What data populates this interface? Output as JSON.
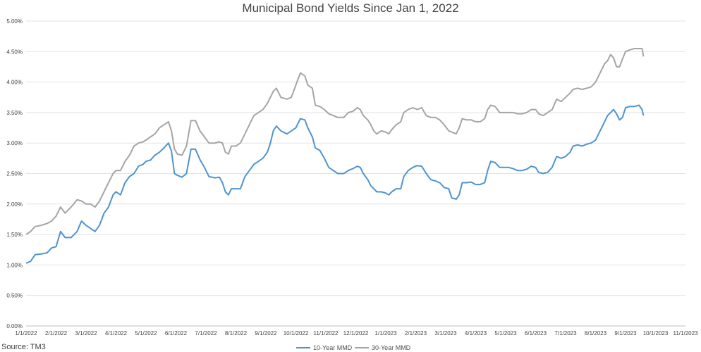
{
  "chart_data": {
    "type": "line",
    "title": "Municipal Bond Yields Since Jan 1, 2022",
    "source": "Source: TM3",
    "y_tick_labels": [
      "0.00%",
      "0.50%",
      "1.00%",
      "1.50%",
      "2.00%",
      "2.50%",
      "3.00%",
      "3.50%",
      "4.00%",
      "4.50%",
      "5.00%"
    ],
    "ylim": [
      0,
      5
    ],
    "x_tick_labels": [
      "1/1/2022",
      "2/1/2022",
      "3/1/2022",
      "4/1/2022",
      "5/1/2022",
      "6/1/2022",
      "7/1/2022",
      "8/1/2022",
      "9/1/2022",
      "10/1/2022",
      "11/1/2022",
      "12/1/2022",
      "1/1/2023",
      "2/1/2023",
      "3/1/2023",
      "4/1/2023",
      "5/1/2023",
      "6/1/2023",
      "7/1/2023",
      "8/1/2023",
      "9/1/2023",
      "10/1/2023",
      "11/1/2023"
    ],
    "grid": "horizontal",
    "legend_position": "bottom",
    "series": [
      {
        "name": "10-Year MMD",
        "color": "#4f93d0",
        "values": [
          [
            0.0,
            1.03
          ],
          [
            0.15,
            1.06
          ],
          [
            0.3,
            1.17
          ],
          [
            0.5,
            1.18
          ],
          [
            0.7,
            1.2
          ],
          [
            0.85,
            1.28
          ],
          [
            1.0,
            1.3
          ],
          [
            1.15,
            1.55
          ],
          [
            1.3,
            1.45
          ],
          [
            1.5,
            1.45
          ],
          [
            1.7,
            1.55
          ],
          [
            1.85,
            1.72
          ],
          [
            2.0,
            1.65
          ],
          [
            2.15,
            1.6
          ],
          [
            2.3,
            1.55
          ],
          [
            2.45,
            1.65
          ],
          [
            2.6,
            1.85
          ],
          [
            2.75,
            1.95
          ],
          [
            2.9,
            2.15
          ],
          [
            3.0,
            2.2
          ],
          [
            3.15,
            2.15
          ],
          [
            3.3,
            2.35
          ],
          [
            3.45,
            2.45
          ],
          [
            3.6,
            2.5
          ],
          [
            3.75,
            2.62
          ],
          [
            3.9,
            2.65
          ],
          [
            4.0,
            2.7
          ],
          [
            4.15,
            2.72
          ],
          [
            4.3,
            2.8
          ],
          [
            4.45,
            2.85
          ],
          [
            4.6,
            2.92
          ],
          [
            4.75,
            3.0
          ],
          [
            4.85,
            2.87
          ],
          [
            4.95,
            2.5
          ],
          [
            5.05,
            2.47
          ],
          [
            5.2,
            2.44
          ],
          [
            5.35,
            2.5
          ],
          [
            5.5,
            2.9
          ],
          [
            5.65,
            2.9
          ],
          [
            5.8,
            2.73
          ],
          [
            5.95,
            2.6
          ],
          [
            6.1,
            2.45
          ],
          [
            6.3,
            2.43
          ],
          [
            6.45,
            2.44
          ],
          [
            6.55,
            2.35
          ],
          [
            6.65,
            2.2
          ],
          [
            6.75,
            2.15
          ],
          [
            6.85,
            2.25
          ],
          [
            7.0,
            2.25
          ],
          [
            7.15,
            2.25
          ],
          [
            7.3,
            2.45
          ],
          [
            7.45,
            2.55
          ],
          [
            7.6,
            2.65
          ],
          [
            7.75,
            2.7
          ],
          [
            7.9,
            2.75
          ],
          [
            8.05,
            2.85
          ],
          [
            8.15,
            3.0
          ],
          [
            8.25,
            3.2
          ],
          [
            8.35,
            3.28
          ],
          [
            8.5,
            3.2
          ],
          [
            8.7,
            3.15
          ],
          [
            8.85,
            3.2
          ],
          [
            9.0,
            3.25
          ],
          [
            9.15,
            3.4
          ],
          [
            9.3,
            3.38
          ],
          [
            9.4,
            3.25
          ],
          [
            9.55,
            3.1
          ],
          [
            9.65,
            2.92
          ],
          [
            9.8,
            2.88
          ],
          [
            9.95,
            2.75
          ],
          [
            10.1,
            2.6
          ],
          [
            10.25,
            2.55
          ],
          [
            10.4,
            2.5
          ],
          [
            10.6,
            2.5
          ],
          [
            10.75,
            2.55
          ],
          [
            10.9,
            2.58
          ],
          [
            11.05,
            2.62
          ],
          [
            11.15,
            2.6
          ],
          [
            11.25,
            2.5
          ],
          [
            11.4,
            2.4
          ],
          [
            11.5,
            2.3
          ],
          [
            11.6,
            2.25
          ],
          [
            11.7,
            2.2
          ],
          [
            11.85,
            2.2
          ],
          [
            12.0,
            2.18
          ],
          [
            12.1,
            2.15
          ],
          [
            12.2,
            2.2
          ],
          [
            12.35,
            2.25
          ],
          [
            12.5,
            2.25
          ],
          [
            12.6,
            2.45
          ],
          [
            12.75,
            2.55
          ],
          [
            12.9,
            2.6
          ],
          [
            13.05,
            2.63
          ],
          [
            13.2,
            2.62
          ],
          [
            13.35,
            2.5
          ],
          [
            13.5,
            2.4
          ],
          [
            13.65,
            2.38
          ],
          [
            13.8,
            2.35
          ],
          [
            13.95,
            2.27
          ],
          [
            14.1,
            2.25
          ],
          [
            14.2,
            2.1
          ],
          [
            14.35,
            2.08
          ],
          [
            14.45,
            2.15
          ],
          [
            14.55,
            2.35
          ],
          [
            14.7,
            2.35
          ],
          [
            14.85,
            2.36
          ],
          [
            15.0,
            2.32
          ],
          [
            15.15,
            2.32
          ],
          [
            15.3,
            2.35
          ],
          [
            15.4,
            2.55
          ],
          [
            15.5,
            2.7
          ],
          [
            15.65,
            2.68
          ],
          [
            15.8,
            2.6
          ],
          [
            15.95,
            2.6
          ],
          [
            16.1,
            2.6
          ],
          [
            16.25,
            2.58
          ],
          [
            16.4,
            2.55
          ],
          [
            16.55,
            2.55
          ],
          [
            16.7,
            2.57
          ],
          [
            16.85,
            2.62
          ],
          [
            17.0,
            2.6
          ],
          [
            17.1,
            2.52
          ],
          [
            17.25,
            2.5
          ],
          [
            17.4,
            2.52
          ],
          [
            17.55,
            2.6
          ],
          [
            17.7,
            2.78
          ],
          [
            17.85,
            2.75
          ],
          [
            18.0,
            2.78
          ],
          [
            18.15,
            2.85
          ],
          [
            18.25,
            2.95
          ],
          [
            18.4,
            2.97
          ],
          [
            18.55,
            2.95
          ],
          [
            18.7,
            2.98
          ],
          [
            18.85,
            3.0
          ],
          [
            19.0,
            3.05
          ],
          [
            19.15,
            3.2
          ],
          [
            19.3,
            3.35
          ],
          [
            19.4,
            3.45
          ],
          [
            19.5,
            3.5
          ],
          [
            19.6,
            3.55
          ],
          [
            19.7,
            3.48
          ],
          [
            19.8,
            3.38
          ],
          [
            19.9,
            3.42
          ],
          [
            20.0,
            3.58
          ],
          [
            20.15,
            3.6
          ],
          [
            20.3,
            3.6
          ],
          [
            20.45,
            3.62
          ],
          [
            20.55,
            3.55
          ],
          [
            20.6,
            3.45
          ]
        ]
      },
      {
        "name": "30-Year MMD",
        "color": "#a5a5a5",
        "values": [
          [
            0.0,
            1.5
          ],
          [
            0.15,
            1.55
          ],
          [
            0.3,
            1.63
          ],
          [
            0.5,
            1.65
          ],
          [
            0.7,
            1.68
          ],
          [
            0.85,
            1.72
          ],
          [
            1.0,
            1.8
          ],
          [
            1.15,
            1.95
          ],
          [
            1.3,
            1.85
          ],
          [
            1.5,
            1.95
          ],
          [
            1.7,
            2.07
          ],
          [
            1.85,
            2.05
          ],
          [
            2.0,
            2.0
          ],
          [
            2.15,
            2.0
          ],
          [
            2.3,
            1.95
          ],
          [
            2.45,
            2.05
          ],
          [
            2.6,
            2.2
          ],
          [
            2.75,
            2.35
          ],
          [
            2.9,
            2.5
          ],
          [
            3.0,
            2.55
          ],
          [
            3.15,
            2.55
          ],
          [
            3.3,
            2.7
          ],
          [
            3.45,
            2.8
          ],
          [
            3.6,
            2.95
          ],
          [
            3.75,
            3.0
          ],
          [
            3.9,
            3.02
          ],
          [
            4.0,
            3.05
          ],
          [
            4.15,
            3.1
          ],
          [
            4.3,
            3.15
          ],
          [
            4.45,
            3.25
          ],
          [
            4.6,
            3.3
          ],
          [
            4.75,
            3.35
          ],
          [
            4.85,
            3.2
          ],
          [
            4.95,
            2.9
          ],
          [
            5.05,
            2.82
          ],
          [
            5.2,
            2.8
          ],
          [
            5.35,
            2.95
          ],
          [
            5.5,
            3.37
          ],
          [
            5.65,
            3.37
          ],
          [
            5.8,
            3.2
          ],
          [
            5.95,
            3.1
          ],
          [
            6.1,
            3.0
          ],
          [
            6.3,
            3.0
          ],
          [
            6.45,
            3.02
          ],
          [
            6.55,
            3.0
          ],
          [
            6.65,
            2.85
          ],
          [
            6.75,
            2.82
          ],
          [
            6.85,
            2.95
          ],
          [
            7.0,
            2.95
          ],
          [
            7.15,
            3.0
          ],
          [
            7.3,
            3.15
          ],
          [
            7.45,
            3.3
          ],
          [
            7.6,
            3.45
          ],
          [
            7.75,
            3.5
          ],
          [
            7.9,
            3.55
          ],
          [
            8.05,
            3.65
          ],
          [
            8.15,
            3.75
          ],
          [
            8.25,
            3.85
          ],
          [
            8.35,
            3.9
          ],
          [
            8.5,
            3.75
          ],
          [
            8.7,
            3.72
          ],
          [
            8.85,
            3.75
          ],
          [
            9.0,
            3.95
          ],
          [
            9.15,
            4.15
          ],
          [
            9.3,
            4.1
          ],
          [
            9.4,
            3.95
          ],
          [
            9.55,
            3.9
          ],
          [
            9.65,
            3.62
          ],
          [
            9.8,
            3.6
          ],
          [
            9.95,
            3.55
          ],
          [
            10.1,
            3.48
          ],
          [
            10.25,
            3.45
          ],
          [
            10.4,
            3.42
          ],
          [
            10.6,
            3.42
          ],
          [
            10.75,
            3.5
          ],
          [
            10.9,
            3.52
          ],
          [
            11.05,
            3.58
          ],
          [
            11.15,
            3.55
          ],
          [
            11.25,
            3.45
          ],
          [
            11.4,
            3.38
          ],
          [
            11.5,
            3.3
          ],
          [
            11.6,
            3.2
          ],
          [
            11.7,
            3.15
          ],
          [
            11.85,
            3.2
          ],
          [
            12.0,
            3.18
          ],
          [
            12.1,
            3.15
          ],
          [
            12.2,
            3.22
          ],
          [
            12.35,
            3.3
          ],
          [
            12.5,
            3.35
          ],
          [
            12.6,
            3.5
          ],
          [
            12.75,
            3.55
          ],
          [
            12.9,
            3.58
          ],
          [
            13.05,
            3.55
          ],
          [
            13.2,
            3.58
          ],
          [
            13.35,
            3.45
          ],
          [
            13.5,
            3.42
          ],
          [
            13.65,
            3.42
          ],
          [
            13.8,
            3.38
          ],
          [
            13.95,
            3.3
          ],
          [
            14.1,
            3.2
          ],
          [
            14.2,
            3.18
          ],
          [
            14.35,
            3.15
          ],
          [
            14.45,
            3.25
          ],
          [
            14.55,
            3.4
          ],
          [
            14.7,
            3.38
          ],
          [
            14.85,
            3.38
          ],
          [
            15.0,
            3.35
          ],
          [
            15.15,
            3.35
          ],
          [
            15.3,
            3.4
          ],
          [
            15.4,
            3.55
          ],
          [
            15.5,
            3.62
          ],
          [
            15.65,
            3.6
          ],
          [
            15.8,
            3.5
          ],
          [
            15.95,
            3.5
          ],
          [
            16.1,
            3.5
          ],
          [
            16.25,
            3.5
          ],
          [
            16.4,
            3.48
          ],
          [
            16.55,
            3.48
          ],
          [
            16.7,
            3.5
          ],
          [
            16.85,
            3.55
          ],
          [
            17.0,
            3.55
          ],
          [
            17.1,
            3.48
          ],
          [
            17.25,
            3.45
          ],
          [
            17.4,
            3.5
          ],
          [
            17.55,
            3.55
          ],
          [
            17.7,
            3.72
          ],
          [
            17.85,
            3.68
          ],
          [
            18.0,
            3.75
          ],
          [
            18.15,
            3.82
          ],
          [
            18.25,
            3.88
          ],
          [
            18.4,
            3.9
          ],
          [
            18.55,
            3.88
          ],
          [
            18.7,
            3.9
          ],
          [
            18.85,
            3.92
          ],
          [
            19.0,
            4.0
          ],
          [
            19.15,
            4.15
          ],
          [
            19.3,
            4.3
          ],
          [
            19.4,
            4.35
          ],
          [
            19.5,
            4.45
          ],
          [
            19.6,
            4.4
          ],
          [
            19.7,
            4.25
          ],
          [
            19.8,
            4.25
          ],
          [
            19.9,
            4.38
          ],
          [
            20.0,
            4.5
          ],
          [
            20.15,
            4.53
          ],
          [
            20.3,
            4.55
          ],
          [
            20.45,
            4.55
          ],
          [
            20.55,
            4.55
          ],
          [
            20.6,
            4.42
          ]
        ]
      }
    ]
  }
}
